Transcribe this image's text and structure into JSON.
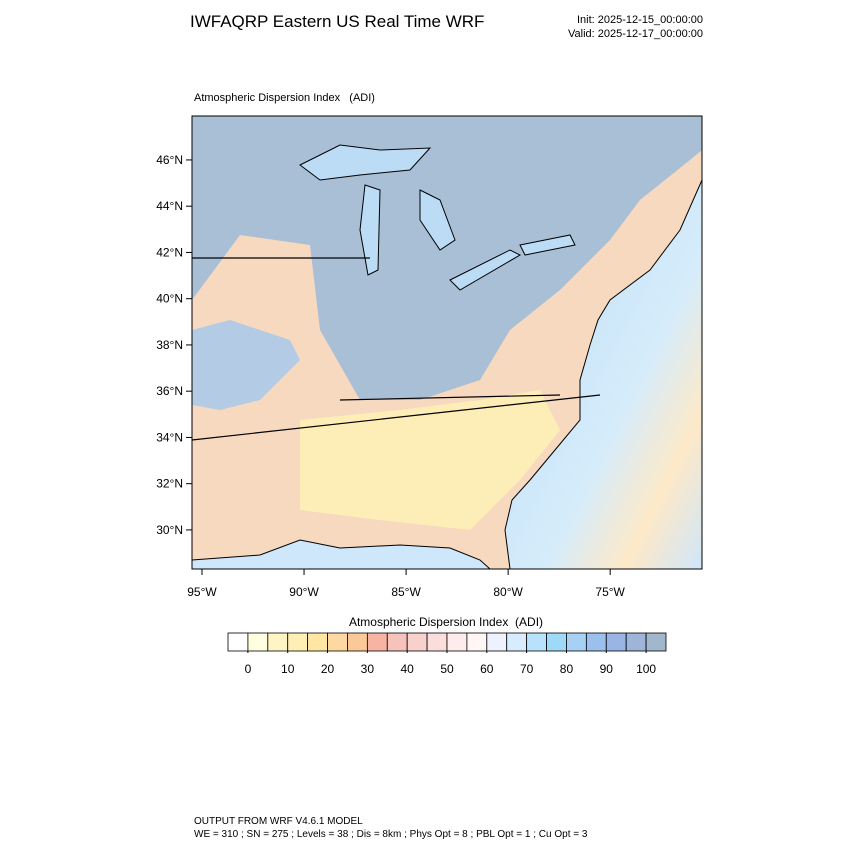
{
  "header": {
    "title": "IWFAQRP Eastern US Real Time WRF",
    "init": "Init: 2025-12-15_00:00:00",
    "valid": "Valid: 2025-12-17_00:00:00"
  },
  "map": {
    "title": "Atmospheric Dispersion Index   (ADI)",
    "xlim": [
      -95.49,
      -70.5
    ],
    "ylim": [
      28.31,
      47.9
    ],
    "xticks": [
      {
        "value": -95,
        "label": "95°W"
      },
      {
        "value": -90,
        "label": "90°W"
      },
      {
        "value": -85,
        "label": "85°W"
      },
      {
        "value": -80,
        "label": "80°W"
      },
      {
        "value": -75,
        "label": "75°W"
      }
    ],
    "yticks": [
      {
        "value": 30,
        "label": "30°N"
      },
      {
        "value": 32,
        "label": "32°N"
      },
      {
        "value": 34,
        "label": "34°N"
      },
      {
        "value": 36,
        "label": "36°N"
      },
      {
        "value": 38,
        "label": "38°N"
      },
      {
        "value": 40,
        "label": "40°N"
      },
      {
        "value": 42,
        "label": "42°N"
      },
      {
        "value": 44,
        "label": "44°N"
      },
      {
        "value": 46,
        "label": "46°N"
      }
    ]
  },
  "colorbar": {
    "title": "Atmospheric Dispersion Index  (ADI)",
    "lim": [
      -5,
      105
    ],
    "ticks": [
      0,
      10,
      20,
      30,
      40,
      50,
      60,
      70,
      80,
      90,
      100
    ],
    "colors": [
      "#ffffff",
      "#ffffe0",
      "#fff5c4",
      "#ffefb4",
      "#ffe6a4",
      "#fdd8a0",
      "#fbc898",
      "#f7b4a2",
      "#f5c2bc",
      "#f8d0cc",
      "#fbdedc",
      "#fdeceb",
      "#fff6f6",
      "#eef2ff",
      "#d8ebff",
      "#b8e2fb",
      "#9ed9f5",
      "#a6d0f4",
      "#9cc0ee",
      "#9ab4e6",
      "#9eb4d8",
      "#a2b6cc"
    ]
  },
  "footer": {
    "lines": [
      "OUTPUT FROM WRF V4.6.1 MODEL",
      "WE = 310 ; SN = 275 ; Levels = 38 ; Dis = 8km ; Phys Opt = 8 ; PBL Opt = 1 ; Cu Opt = 3"
    ]
  }
}
